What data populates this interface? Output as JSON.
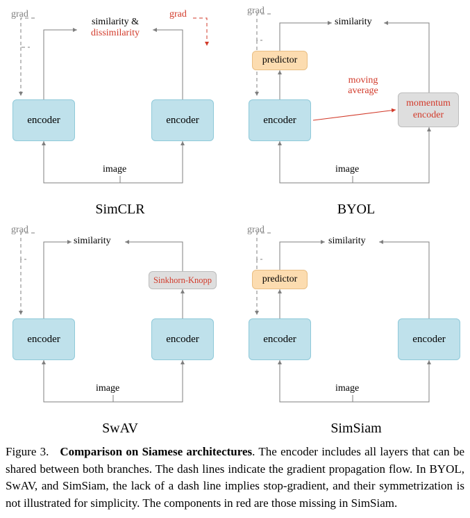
{
  "colors": {
    "encoder_fill": "#bfe1eb",
    "encoder_border": "#8fc9d9",
    "predictor_fill": "#fcdcb0",
    "predictor_border": "#e9be83",
    "momentum_fill": "#dedede",
    "momentum_border": "#bcbcbc",
    "sk_fill": "#dedede",
    "sk_border": "#bcbcbc",
    "arrow_gray": "#7f7f7f",
    "red": "#d23a2a",
    "text_black": "#000000",
    "text_red": "#d23a2a",
    "text_gray": "#7f7f7f"
  },
  "layout": {
    "encoder_w": 90,
    "encoder_h": 60,
    "predictor_w": 80,
    "predictor_h": 28,
    "momentum_w": 88,
    "momentum_h": 50,
    "sk_w": 98,
    "sk_h": 26
  },
  "panels": {
    "simclr": {
      "title": "SimCLR",
      "encoder_label": "encoder",
      "similarity_html": "similarity &<br><span style='color:#d23a2a'>dissimilarity</span>",
      "grad_left": "grad",
      "grad_right": "grad",
      "image_label": "image"
    },
    "byol": {
      "title": "BYOL",
      "encoder_label": "encoder",
      "predictor_label": "predictor",
      "similarity_label": "similarity",
      "moving_avg_label": "moving\naverage",
      "momentum_label": "momentum\nencoder",
      "grad_left": "grad",
      "image_label": "image"
    },
    "swav": {
      "title": "SwAV",
      "encoder_label": "encoder",
      "similarity_label": "similarity",
      "sk_label": "Sinkhorn-Knopp",
      "grad_left": "grad",
      "image_label": "image"
    },
    "simsiam": {
      "title": "SimSiam",
      "encoder_label": "encoder",
      "predictor_label": "predictor",
      "similarity_label": "similarity",
      "grad_left": "grad",
      "image_label": "image"
    }
  },
  "caption": {
    "prefix": "Figure 3.",
    "bold": "Comparison on Siamese architectures",
    "rest": ". The encoder includes all layers that can be shared between both branches. The dash lines indicate the gradient propagation flow. In BYOL, SwAV, and SimSiam, the lack of a dash line implies stop-gradient, and their symmetrization is not illustrated for simplicity. The components in red are those missing in SimSiam."
  }
}
